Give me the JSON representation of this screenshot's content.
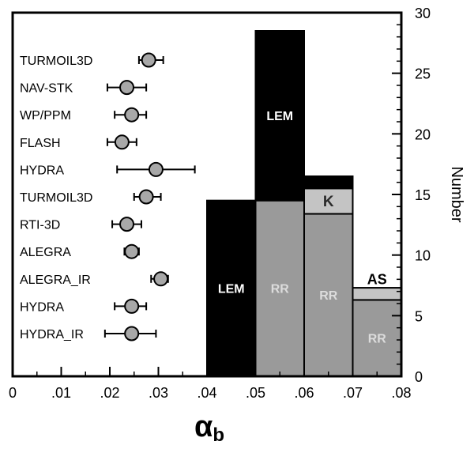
{
  "chart_data": {
    "type": "bar",
    "xlabel_main": "α",
    "xlabel_sub": "b",
    "ylabel_right": "Number",
    "xlim": [
      0,
      0.08
    ],
    "ylim": [
      0,
      30
    ],
    "x_ticks": [
      {
        "v": 0,
        "label": "0"
      },
      {
        "v": 0.01,
        "label": ".01"
      },
      {
        "v": 0.02,
        "label": ".02"
      },
      {
        "v": 0.03,
        "label": ".03"
      },
      {
        "v": 0.04,
        "label": ".04"
      },
      {
        "v": 0.05,
        "label": ".05"
      },
      {
        "v": 0.06,
        "label": ".06"
      },
      {
        "v": 0.07,
        "label": ".07"
      },
      {
        "v": 0.08,
        "label": ".08"
      }
    ],
    "y_ticks": [
      {
        "v": 0,
        "label": "0"
      },
      {
        "v": 5,
        "label": "5"
      },
      {
        "v": 10,
        "label": "10"
      },
      {
        "v": 15,
        "label": "15"
      },
      {
        "v": 20,
        "label": "20"
      },
      {
        "v": 25,
        "label": "25"
      },
      {
        "v": 30,
        "label": "30"
      }
    ],
    "histogram": [
      {
        "x0": 0.04,
        "x1": 0.05,
        "segments": [
          {
            "name": "LEM",
            "y0": 0,
            "y1": 14.5,
            "color": "#000000",
            "label_color": "#ffffff"
          }
        ]
      },
      {
        "x0": 0.05,
        "x1": 0.06,
        "segments": [
          {
            "name": "RR",
            "y0": 0,
            "y1": 14.5,
            "color": "#9a9a9a",
            "label_color": "#dcdcdc"
          },
          {
            "name": "LEM",
            "y0": 14.5,
            "y1": 28.5,
            "color": "#000000",
            "label_color": "#ffffff"
          }
        ]
      },
      {
        "x0": 0.06,
        "x1": 0.07,
        "segments": [
          {
            "name": "RR",
            "y0": 0,
            "y1": 13.4,
            "color": "#9a9a9a",
            "label_color": "#dcdcdc"
          },
          {
            "name": "K",
            "y0": 13.4,
            "y1": 15.5,
            "color": "#c4c4c4",
            "label_color": "#2a2a2a"
          },
          {
            "name": "",
            "y0": 15.5,
            "y1": 16.5,
            "color": "#000000",
            "label_color": "#ffffff"
          }
        ]
      },
      {
        "x0": 0.07,
        "x1": 0.08,
        "segments": [
          {
            "name": "RR",
            "y0": 0,
            "y1": 6.3,
            "color": "#9a9a9a",
            "label_color": "#dcdcdc"
          },
          {
            "name": "",
            "y0": 6.3,
            "y1": 7.3,
            "color": "#c4c4c4",
            "label_color": "#000000"
          }
        ]
      }
    ],
    "bar_annotations": [
      {
        "text": "AS",
        "x": 0.075,
        "y": 7.6
      }
    ],
    "codes": [
      {
        "name": "TURMOIL3D",
        "value": 0.028,
        "err_lo": 0.026,
        "err_hi": 0.031
      },
      {
        "name": "NAV-STK",
        "value": 0.0235,
        "err_lo": 0.0195,
        "err_hi": 0.0275
      },
      {
        "name": "WP/PPM",
        "value": 0.0245,
        "err_lo": 0.021,
        "err_hi": 0.0275
      },
      {
        "name": "FLASH",
        "value": 0.0225,
        "err_lo": 0.0195,
        "err_hi": 0.0255
      },
      {
        "name": "HYDRA",
        "value": 0.0295,
        "err_lo": 0.0215,
        "err_hi": 0.0375
      },
      {
        "name": "TURMOIL3D",
        "value": 0.0275,
        "err_lo": 0.025,
        "err_hi": 0.0305
      },
      {
        "name": "RTI-3D",
        "value": 0.0235,
        "err_lo": 0.0205,
        "err_hi": 0.0265
      },
      {
        "name": "ALEGRA",
        "value": 0.0245,
        "err_lo": 0.023,
        "err_hi": 0.026
      },
      {
        "name": "ALEGRA_IR",
        "value": 0.0305,
        "err_lo": 0.0285,
        "err_hi": 0.032
      },
      {
        "name": "HYDRA",
        "value": 0.0245,
        "err_lo": 0.021,
        "err_hi": 0.0275
      },
      {
        "name": "HYDRA_IR",
        "value": 0.0245,
        "err_lo": 0.019,
        "err_hi": 0.0295
      }
    ],
    "grid": false,
    "legend": "none"
  }
}
